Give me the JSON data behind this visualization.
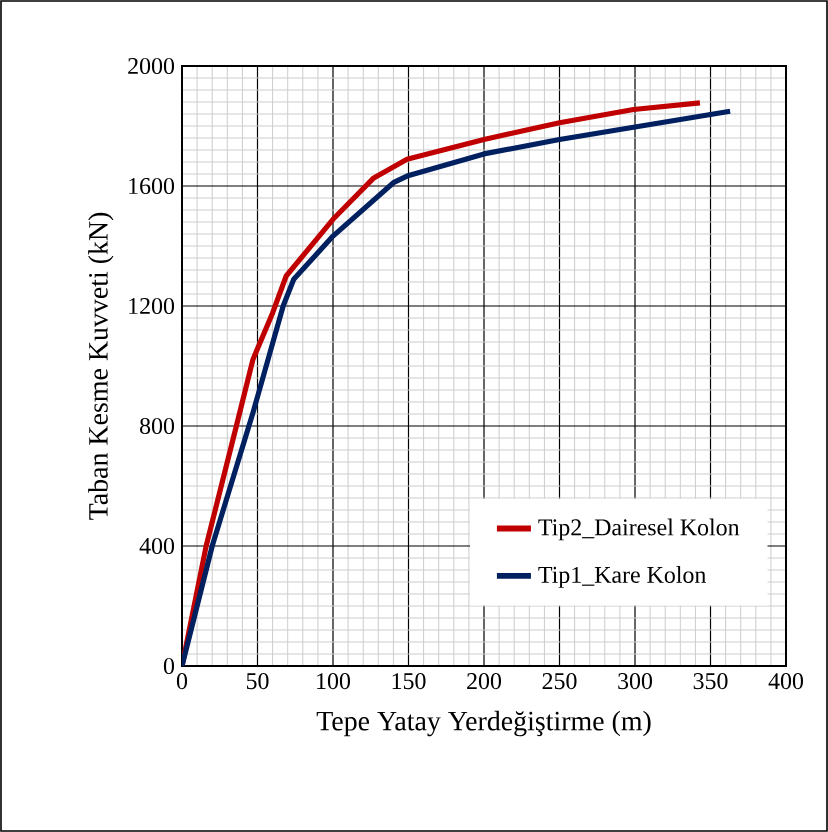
{
  "chart_data": {
    "type": "line",
    "xlabel": "Tepe Yatay Yerdeğiştirme (m)",
    "ylabel": "Taban Kesme Kuvveti (kN)",
    "xlim": [
      0,
      400
    ],
    "xticks": [
      0,
      50,
      100,
      150,
      200,
      250,
      300,
      350,
      400
    ],
    "ylim": [
      0,
      2000
    ],
    "yticks": [
      0,
      400,
      800,
      1200,
      1600,
      2000
    ],
    "grid": true,
    "legend": "bottom right",
    "marker": "none",
    "line_style": "solid",
    "series": [
      {
        "name": "Tip2_Dairesel Kolon",
        "color": "#c00000",
        "x": [
          0,
          16,
          36,
          47,
          60,
          69,
          100,
          127,
          149,
          200,
          250,
          299,
          343
        ],
        "values": [
          0,
          400,
          800,
          1022,
          1177,
          1300,
          1489,
          1627,
          1689,
          1755,
          1811,
          1855,
          1877
        ]
      },
      {
        "name": "Tip1_Kare Kolon",
        "color": "#002060",
        "x": [
          0,
          20,
          47,
          57,
          67,
          74,
          100,
          140,
          149,
          200,
          250,
          363
        ],
        "values": [
          0,
          400,
          844,
          1022,
          1200,
          1289,
          1433,
          1611,
          1633,
          1707,
          1755,
          1849
        ]
      }
    ]
  }
}
